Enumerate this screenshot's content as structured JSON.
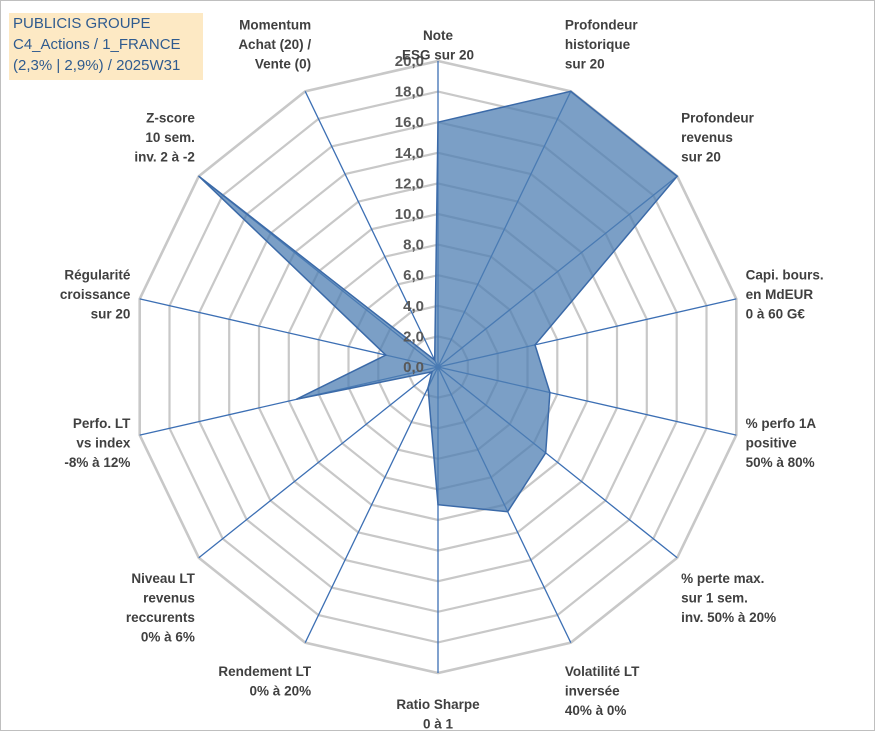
{
  "title_box": {
    "line1": "PUBLICIS GROUPE",
    "line2": "C4_Actions / 1_FRANCE",
    "line3": "(2,3% | 2,9%) / 2025W31"
  },
  "colors": {
    "fill": "#4f7fb3",
    "outline": "#3b6aa8",
    "grid": "#c8c8c8",
    "spoke": "#3c6fb4",
    "title_bg": "#fde9c4",
    "title_text": "#2f5b8f"
  },
  "chart_data": {
    "type": "radar",
    "range": [
      0,
      20
    ],
    "tick_step": 2,
    "tick_labels": [
      "0,0",
      "2,0",
      "4,0",
      "6,0",
      "8,0",
      "10,0",
      "12,0",
      "14,0",
      "16,0",
      "18,0",
      "20,0"
    ],
    "axes": [
      [
        "Note",
        "ESG sur 20"
      ],
      [
        "Profondeur",
        "historique",
        "sur 20"
      ],
      [
        "Profondeur",
        "revenus",
        "sur 20"
      ],
      [
        "Capi. bours.",
        "en MdEUR",
        "0 à 60 G€"
      ],
      [
        "% perfo 1A",
        "positive",
        "50% à 80%"
      ],
      [
        "% perte max.",
        "sur 1 sem.",
        "inv. 50% à 20%"
      ],
      [
        "Volatilité LT",
        "inversée",
        "40% à 0%"
      ],
      [
        "Ratio Sharpe",
        "0 à 1"
      ],
      [
        "Rendement LT",
        "0% à 20%"
      ],
      [
        "Niveau LT",
        "revenus",
        "reccurents",
        "0% à 6%"
      ],
      [
        "Perfo. LT",
        "vs index",
        "-8% à 12%"
      ],
      [
        "Régularité",
        "croissance",
        "sur 20"
      ],
      [
        "Z-score",
        "10 sem.",
        "inv. 2 à -2"
      ],
      [
        "Momentum",
        "Achat (20) /",
        "Vente (0)"
      ]
    ],
    "values": [
      16.0,
      20.0,
      20.0,
      6.5,
      7.5,
      9.0,
      10.5,
      9.0,
      1.5,
      0.5,
      9.5,
      3.5,
      20.0,
      0.5
    ],
    "grid": true,
    "legend": "none"
  }
}
